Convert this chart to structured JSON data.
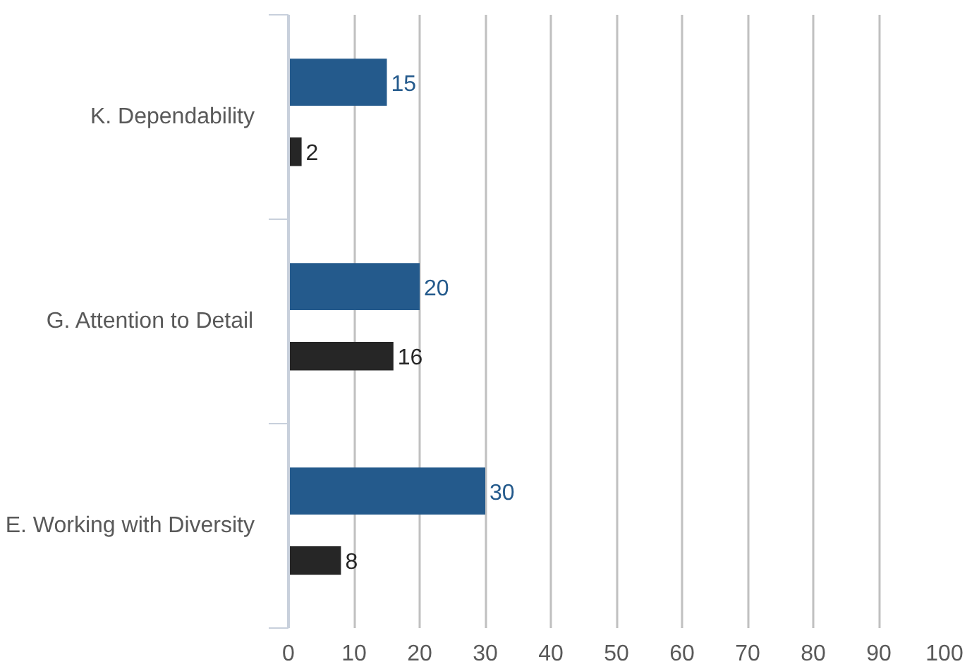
{
  "chart_data": {
    "type": "bar",
    "orientation": "horizontal",
    "categories": [
      "K. Dependability",
      "G. Attention to Detail",
      "E. Working with Diversity"
    ],
    "series": [
      {
        "color": "#245a8c",
        "values": [
          15,
          20,
          30
        ]
      },
      {
        "color": "#262626",
        "values": [
          2,
          16,
          8
        ]
      }
    ],
    "xlim": [
      0,
      100
    ],
    "xticks": [
      0,
      10,
      20,
      30,
      40,
      50,
      60,
      70,
      80,
      90,
      100
    ],
    "grid": "x",
    "data_labels": true
  }
}
